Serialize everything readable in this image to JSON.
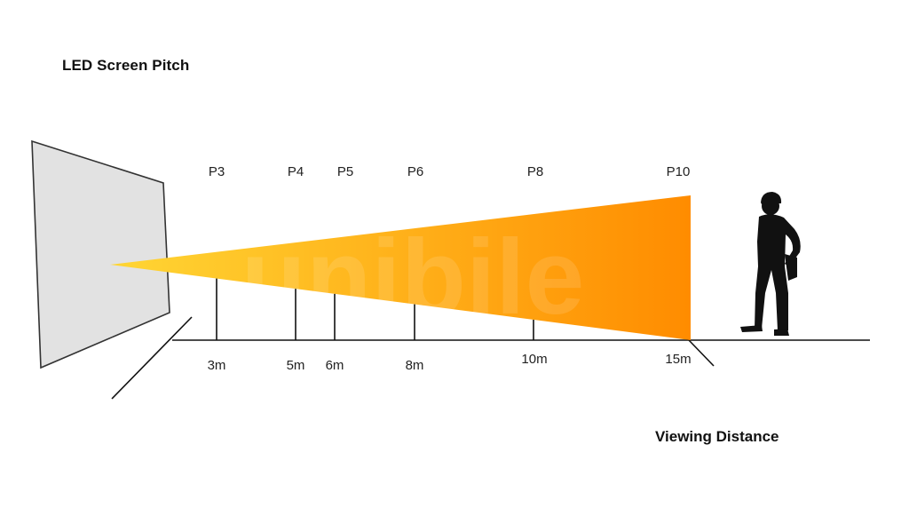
{
  "title": "LED Screen Pitch",
  "axis_label": "Viewing Distance",
  "watermark": "unibile",
  "icons": {
    "screen": "led-screen-panel-icon",
    "person": "standing-worker-silhouette-icon"
  },
  "colors": {
    "cone_start": "#ffd634",
    "cone_end": "#ff8c00",
    "screen_fill": "#e2e2e2",
    "line": "#111111"
  },
  "markers": [
    {
      "pitch": "P3",
      "distance": "3m"
    },
    {
      "pitch": "P4",
      "distance": "5m"
    },
    {
      "pitch": "P5",
      "distance": "6m"
    },
    {
      "pitch": "P6",
      "distance": "8m"
    },
    {
      "pitch": "P8",
      "distance": "10m"
    },
    {
      "pitch": "P10",
      "distance": "15m"
    }
  ]
}
